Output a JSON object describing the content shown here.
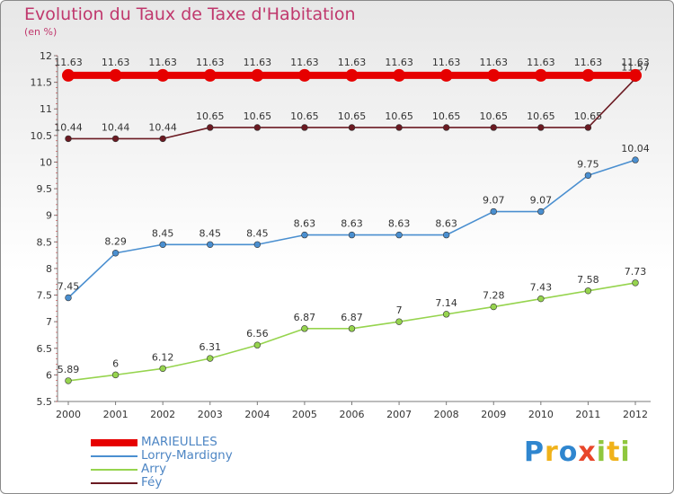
{
  "chart_data": {
    "type": "line",
    "title": "Evolution du Taux de Taxe d'Habitation",
    "subtitle": "(en %)",
    "x": [
      "2000",
      "2001",
      "2002",
      "2003",
      "2004",
      "2005",
      "2006",
      "2007",
      "2008",
      "2009",
      "2010",
      "2011",
      "2012"
    ],
    "ylim": [
      5.5,
      12
    ],
    "yticks": [
      "5.5",
      "6",
      "6.5",
      "7",
      "7.5",
      "8",
      "8.5",
      "9",
      "9.5",
      "10",
      "10.5",
      "11",
      "11.5",
      "12"
    ],
    "grid": false,
    "legend_position": "bottom-left",
    "series": [
      {
        "name": "MARIEULLES",
        "color": "#e60000",
        "thick": true,
        "values": [
          11.63,
          11.63,
          11.63,
          11.63,
          11.63,
          11.63,
          11.63,
          11.63,
          11.63,
          11.63,
          11.63,
          11.63,
          11.63
        ],
        "labels": [
          "11.63",
          "11.63",
          "11.63",
          "11.63",
          "11.63",
          "11.63",
          "11.63",
          "11.63",
          "11.63",
          "11.63",
          "11.63",
          "11.63",
          "11.63"
        ]
      },
      {
        "name": "Lorry-Mardigny",
        "color": "#4a8fd0",
        "values": [
          7.45,
          8.29,
          8.45,
          8.45,
          8.45,
          8.63,
          8.63,
          8.63,
          8.63,
          9.07,
          9.07,
          9.75,
          10.04
        ],
        "labels": [
          "7.45",
          "8.29",
          "8.45",
          "8.45",
          "8.45",
          "8.63",
          "8.63",
          "8.63",
          "8.63",
          "9.07",
          "9.07",
          "9.75",
          "10.04"
        ]
      },
      {
        "name": "Arry",
        "color": "#96d44e",
        "values": [
          5.89,
          6,
          6.12,
          6.31,
          6.56,
          6.87,
          6.87,
          7,
          7.14,
          7.28,
          7.43,
          7.58,
          7.73
        ],
        "labels": [
          "5.89",
          "6",
          "6.12",
          "6.31",
          "6.56",
          "6.87",
          "6.87",
          "7",
          "7.14",
          "7.28",
          "7.43",
          "7.58",
          "7.73"
        ]
      },
      {
        "name": "Féy",
        "color": "#6b1a22",
        "values": [
          10.44,
          10.44,
          10.44,
          10.65,
          10.65,
          10.65,
          10.65,
          10.65,
          10.65,
          10.65,
          10.65,
          10.65,
          11.57
        ],
        "labels": [
          "10.44",
          "10.44",
          "10.44",
          "10.65",
          "10.65",
          "10.65",
          "10.65",
          "10.65",
          "10.65",
          "10.65",
          "10.65",
          "10.65",
          "11.57"
        ]
      }
    ]
  },
  "logo": {
    "letters": [
      "P",
      "r",
      "o",
      "x",
      "i",
      "t",
      "i"
    ],
    "colors": [
      "#2f86cf",
      "#f0b21a",
      "#2f86cf",
      "#e8462a",
      "#8fc73e",
      "#f0b21a",
      "#8fc73e"
    ]
  }
}
